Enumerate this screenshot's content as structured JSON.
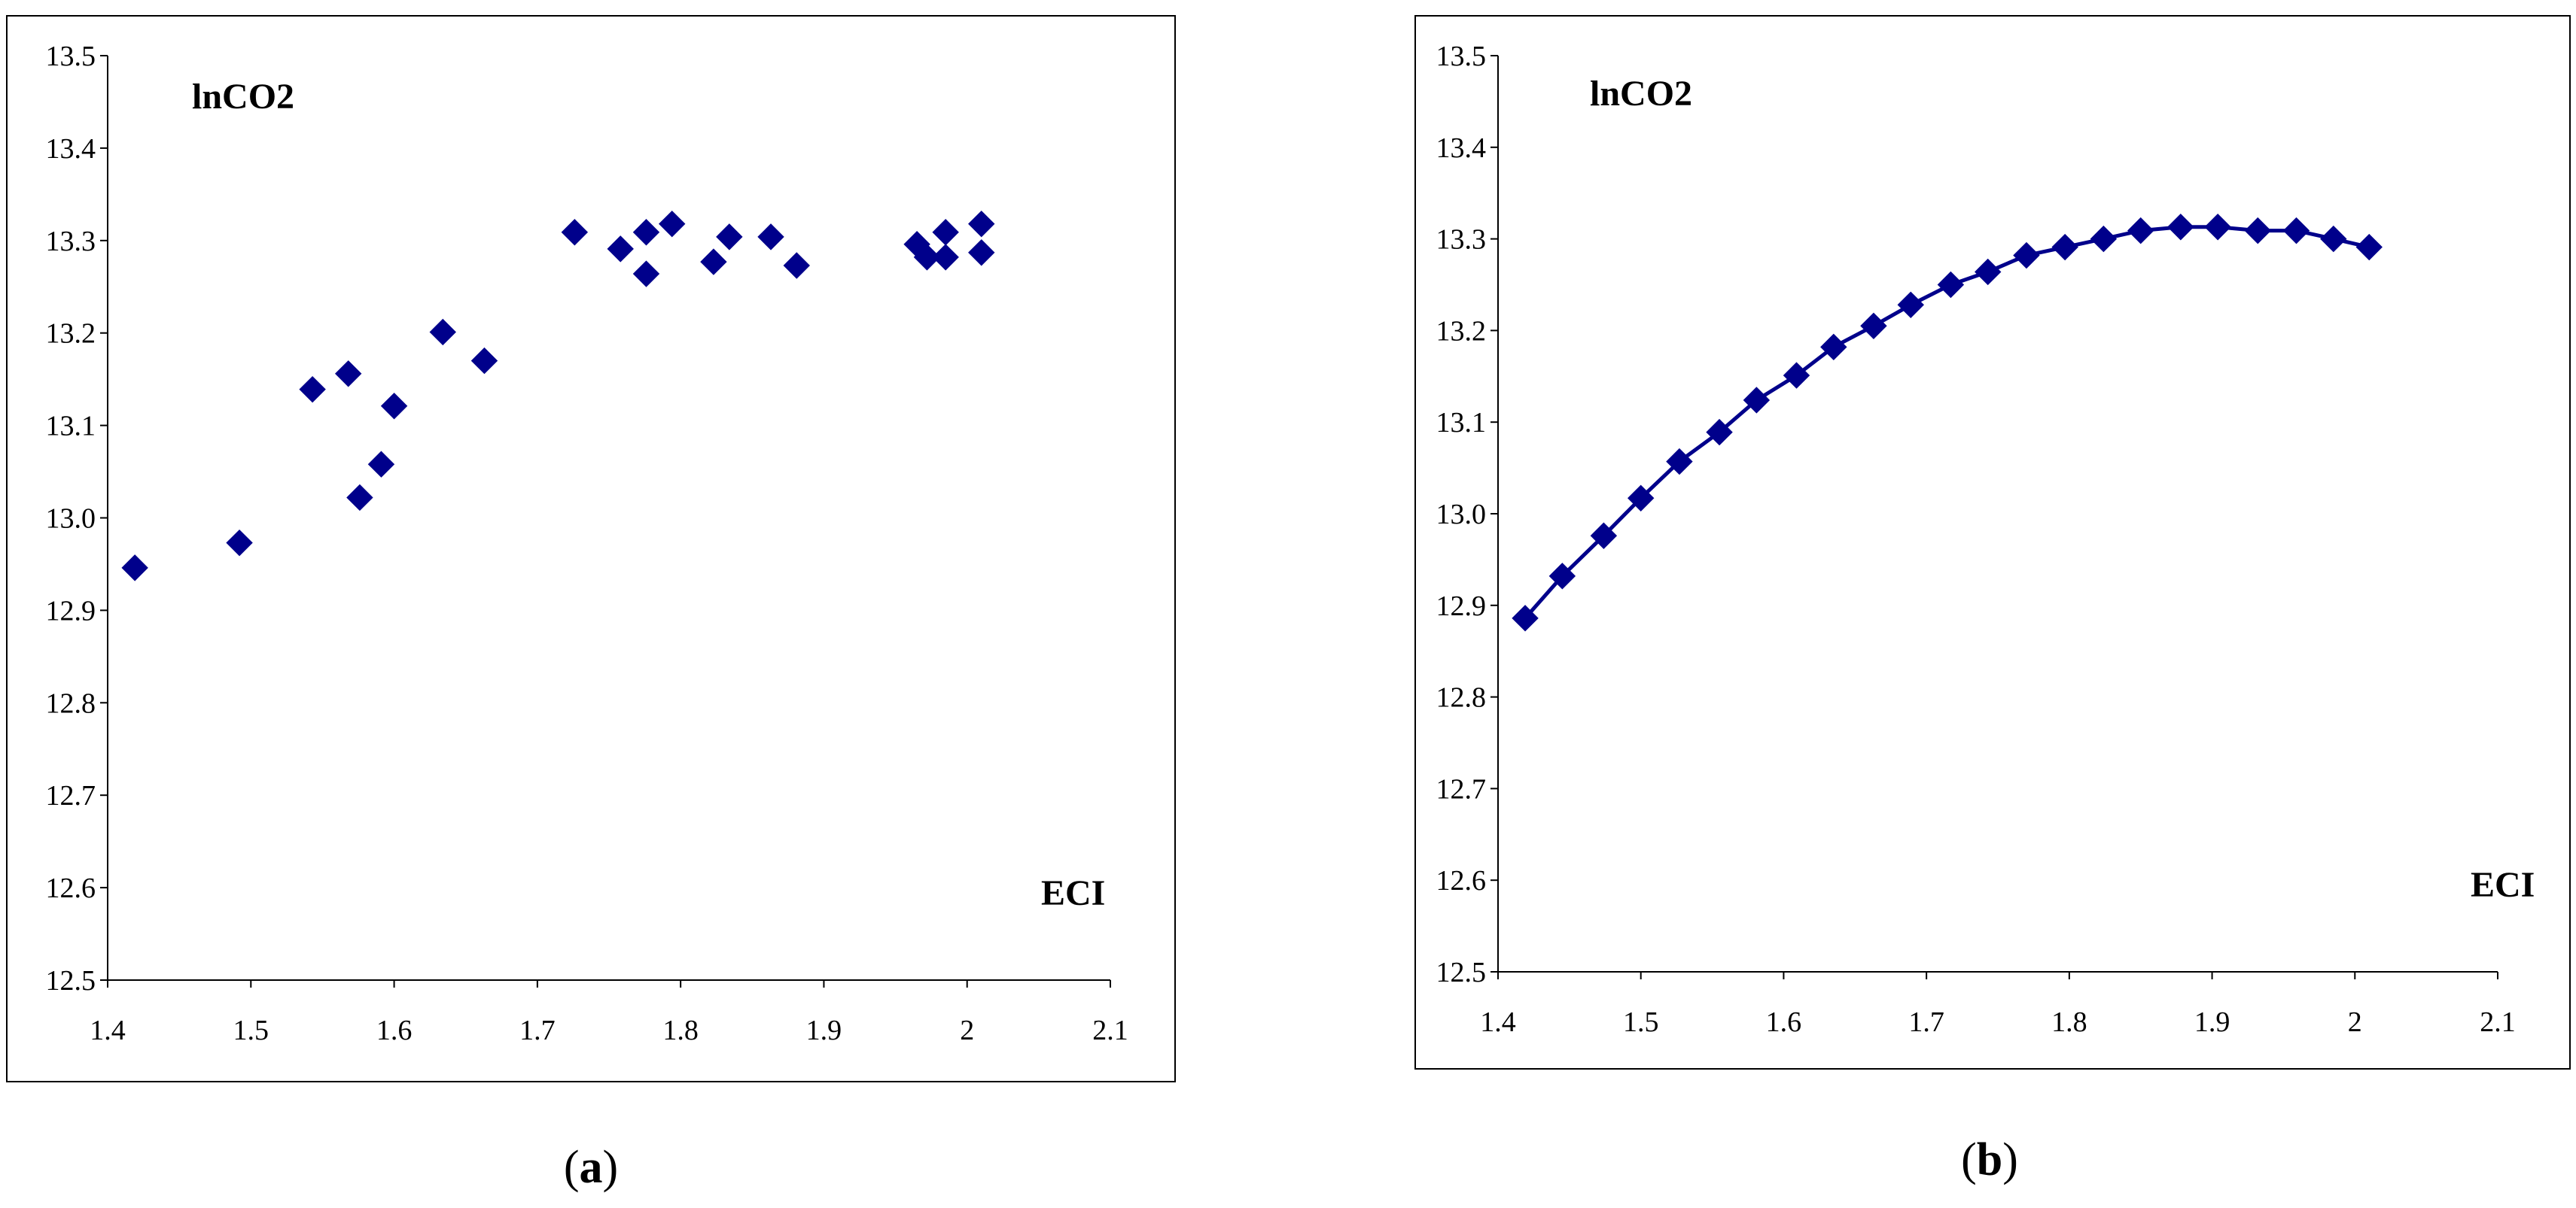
{
  "chart_data": [
    {
      "id": "a",
      "type": "scatter",
      "panel_label": "a",
      "title": "",
      "xlabel": "ECI",
      "ylabel": "lnCO2",
      "xlim": [
        1.4,
        2.1
      ],
      "ylim": [
        12.5,
        13.5
      ],
      "x_ticks": [
        1.4,
        1.5,
        1.6,
        1.7,
        1.8,
        1.9,
        2,
        2.1
      ],
      "x_tick_labels": [
        "1.4",
        "1.5",
        "1.6",
        "1.7",
        "1.8",
        "1.9",
        "2",
        "2.1"
      ],
      "y_ticks": [
        12.5,
        12.6,
        12.7,
        12.8,
        12.9,
        13.0,
        13.1,
        13.2,
        13.3,
        13.4,
        13.5
      ],
      "y_tick_labels": [
        "12.5",
        "12.6",
        "12.7",
        "12.8",
        "12.9",
        "13.0",
        "13.1",
        "13.2",
        "13.3",
        "13.4",
        "13.5"
      ],
      "grid": false,
      "marker": "diamond",
      "color": "#00008B",
      "points": [
        {
          "x": 1.419,
          "y": 12.946
        },
        {
          "x": 1.492,
          "y": 12.973
        },
        {
          "x": 1.543,
          "y": 13.139
        },
        {
          "x": 1.568,
          "y": 13.156
        },
        {
          "x": 1.576,
          "y": 13.022
        },
        {
          "x": 1.591,
          "y": 13.058
        },
        {
          "x": 1.6,
          "y": 13.121
        },
        {
          "x": 1.634,
          "y": 13.201
        },
        {
          "x": 1.663,
          "y": 13.17
        },
        {
          "x": 1.726,
          "y": 13.309
        },
        {
          "x": 1.758,
          "y": 13.291
        },
        {
          "x": 1.776,
          "y": 13.309
        },
        {
          "x": 1.776,
          "y": 13.264
        },
        {
          "x": 1.794,
          "y": 13.318
        },
        {
          "x": 1.823,
          "y": 13.277
        },
        {
          "x": 1.834,
          "y": 13.304
        },
        {
          "x": 1.863,
          "y": 13.304
        },
        {
          "x": 1.881,
          "y": 13.273
        },
        {
          "x": 1.965,
          "y": 13.296
        },
        {
          "x": 1.972,
          "y": 13.282
        },
        {
          "x": 1.985,
          "y": 13.309
        },
        {
          "x": 1.985,
          "y": 13.282
        },
        {
          "x": 2.01,
          "y": 13.318
        },
        {
          "x": 2.01,
          "y": 13.287
        }
      ]
    },
    {
      "id": "b",
      "type": "line",
      "panel_label": "b",
      "title": "",
      "xlabel": "ECI",
      "ylabel": "lnCO2",
      "xlim": [
        1.4,
        2.1
      ],
      "ylim": [
        12.5,
        13.5
      ],
      "x_ticks": [
        1.4,
        1.5,
        1.6,
        1.7,
        1.8,
        1.9,
        2,
        2.1
      ],
      "x_tick_labels": [
        "1.4",
        "1.5",
        "1.6",
        "1.7",
        "1.8",
        "1.9",
        "2",
        "2.1"
      ],
      "y_ticks": [
        12.5,
        12.6,
        12.7,
        12.8,
        12.9,
        13.0,
        13.1,
        13.2,
        13.3,
        13.4,
        13.5
      ],
      "y_tick_labels": [
        "12.5",
        "12.6",
        "12.7",
        "12.8",
        "12.9",
        "13.0",
        "13.1",
        "13.2",
        "13.3",
        "13.4",
        "13.5"
      ],
      "grid": false,
      "marker": "diamond",
      "color": "#00008B",
      "points": [
        {
          "x": 1.419,
          "y": 12.886
        },
        {
          "x": 1.445,
          "y": 12.932
        },
        {
          "x": 1.474,
          "y": 12.976
        },
        {
          "x": 1.5,
          "y": 13.017
        },
        {
          "x": 1.527,
          "y": 13.057
        },
        {
          "x": 1.555,
          "y": 13.089
        },
        {
          "x": 1.581,
          "y": 13.124
        },
        {
          "x": 1.609,
          "y": 13.151
        },
        {
          "x": 1.635,
          "y": 13.182
        },
        {
          "x": 1.663,
          "y": 13.205
        },
        {
          "x": 1.689,
          "y": 13.228
        },
        {
          "x": 1.717,
          "y": 13.25
        },
        {
          "x": 1.743,
          "y": 13.264
        },
        {
          "x": 1.77,
          "y": 13.282
        },
        {
          "x": 1.797,
          "y": 13.291
        },
        {
          "x": 1.824,
          "y": 13.3
        },
        {
          "x": 1.85,
          "y": 13.309
        },
        {
          "x": 1.878,
          "y": 13.313
        },
        {
          "x": 1.904,
          "y": 13.313
        },
        {
          "x": 1.932,
          "y": 13.309
        },
        {
          "x": 1.959,
          "y": 13.309
        },
        {
          "x": 1.985,
          "y": 13.3
        },
        {
          "x": 2.01,
          "y": 13.291
        }
      ]
    }
  ]
}
